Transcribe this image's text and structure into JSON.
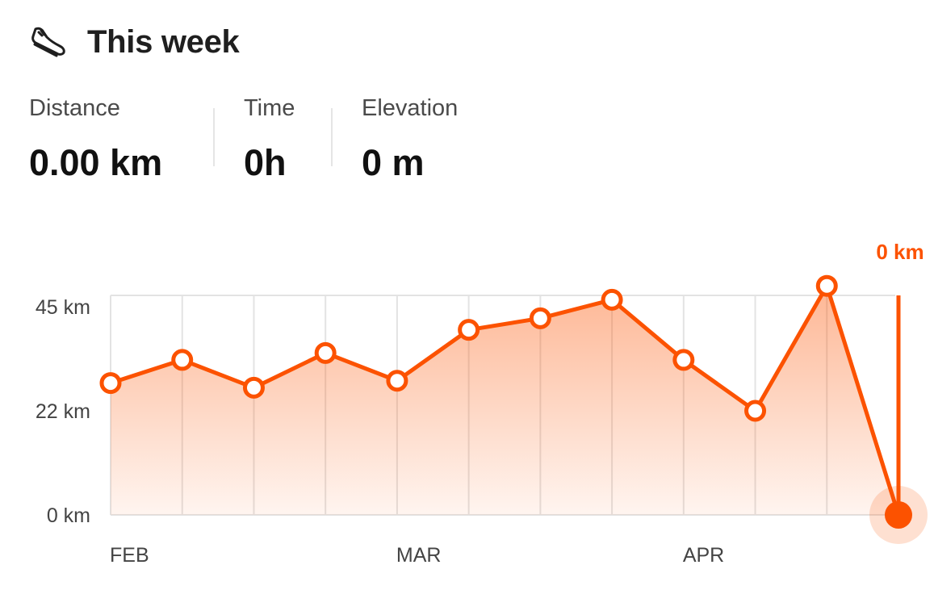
{
  "header": {
    "title": "This week",
    "icon": "running-shoe-icon"
  },
  "stats": {
    "distance": {
      "label": "Distance",
      "value": "0.00 km"
    },
    "time": {
      "label": "Time",
      "value": "0h"
    },
    "elevation": {
      "label": "Elevation",
      "value": "0 m"
    }
  },
  "colors": {
    "accent": "#fc5200",
    "grid": "#e3e3e3",
    "axis_text": "#444444"
  },
  "chart_data": {
    "type": "line",
    "x": [
      "2024-02-05",
      "2024-02-12",
      "2024-02-19",
      "2024-02-26",
      "2024-03-04",
      "2024-03-11",
      "2024-03-18",
      "2024-03-25",
      "2024-04-01",
      "2024-04-08",
      "2024-04-15",
      "2024-04-22"
    ],
    "values": [
      28.5,
      33.5,
      27.5,
      35,
      29,
      40,
      42.5,
      46.5,
      33.5,
      22.5,
      49.5,
      0
    ],
    "ylim": [
      0,
      50
    ],
    "y_ticks": [
      {
        "value": 0,
        "label": "0 km"
      },
      {
        "value": 22.5,
        "label": "22 km"
      },
      {
        "value": 45,
        "label": "45 km"
      }
    ],
    "x_tick_labels": [
      {
        "index": 0,
        "label": "FEB"
      },
      {
        "index": 4,
        "label": "MAR"
      },
      {
        "index": 8,
        "label": "APR"
      }
    ],
    "selected_index": 11,
    "selected_label": "0 km",
    "grid": true,
    "area_fill": true
  }
}
